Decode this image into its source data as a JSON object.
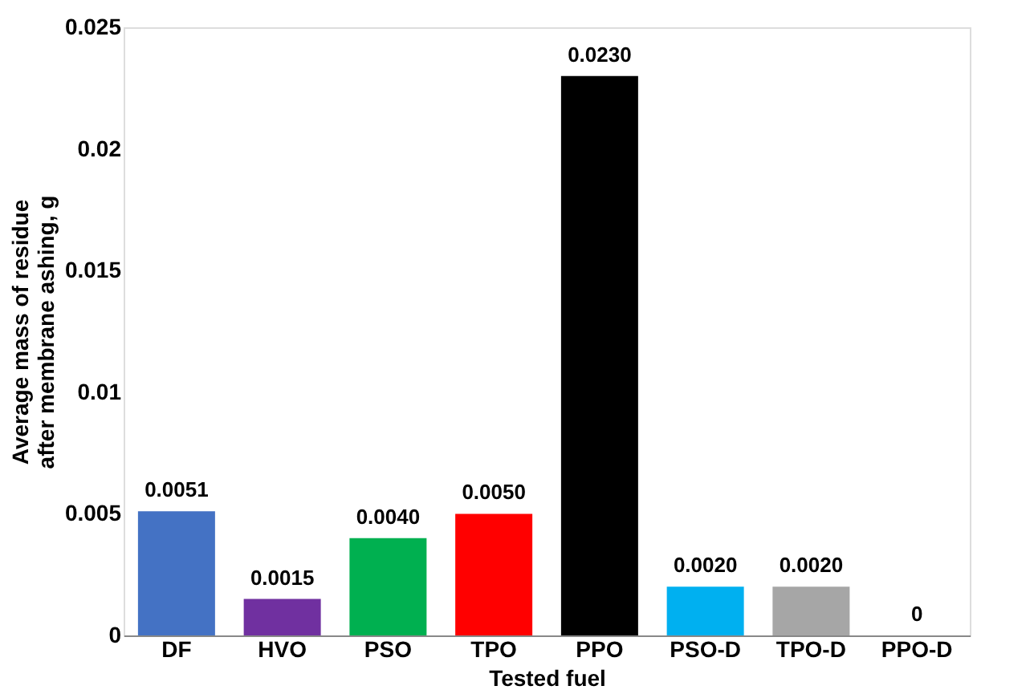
{
  "chart_data": {
    "type": "bar",
    "xlabel": "Tested fuel",
    "ylabel": "Average mass of residue after membrane ashing, g",
    "categories": [
      "DF",
      "HVO",
      "PSO",
      "TPO",
      "PPO",
      "PSO-D",
      "TPO-D",
      "PPO-D"
    ],
    "values": [
      0.0051,
      0.0015,
      0.004,
      0.005,
      0.023,
      0.002,
      0.002,
      0
    ],
    "colors": [
      "#4472c4",
      "#7030a0",
      "#00b050",
      "#ff0000",
      "#000000",
      "#00b0f0",
      "#a6a6a6",
      "#a6a6a6"
    ],
    "value_labels": [
      "0.0051",
      "0.0015",
      "0.0040",
      "0.0050",
      "0.0230",
      "0.0020",
      "0.0020",
      "0"
    ],
    "ylim": [
      0,
      0.025
    ],
    "yticks": [
      0,
      0.005,
      0.01,
      0.015,
      0.02,
      0.025
    ],
    "grid": false
  }
}
